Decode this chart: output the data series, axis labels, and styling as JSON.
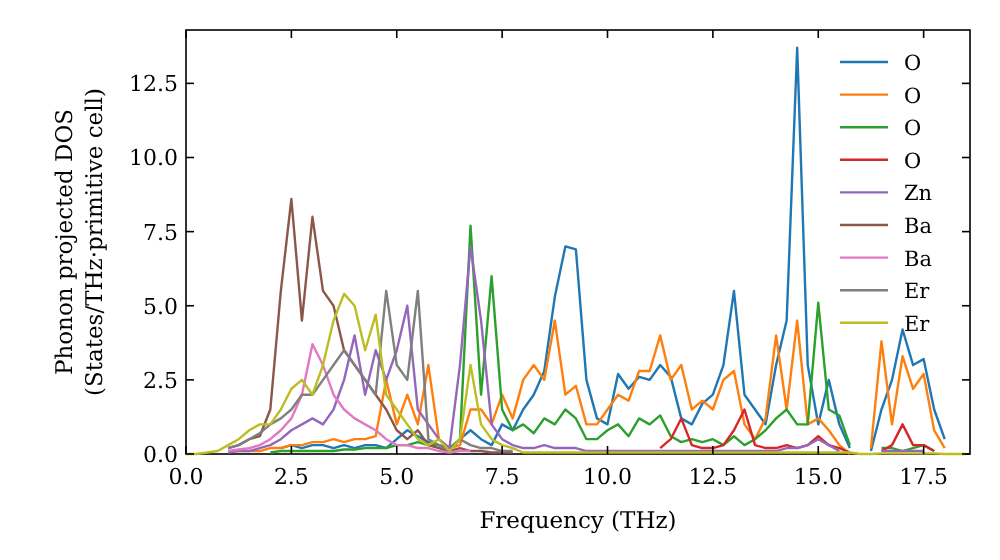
{
  "chart_data": {
    "type": "line",
    "xlabel": "Frequency (THz)",
    "ylabel": "Phonon projected DOS\n(States/THz·primitive cell)",
    "x": [
      0,
      0.25,
      0.5,
      0.75,
      1,
      1.25,
      1.5,
      1.75,
      2,
      2.25,
      2.5,
      2.75,
      3,
      3.25,
      3.5,
      3.75,
      4,
      4.25,
      4.5,
      4.75,
      5,
      5.25,
      5.5,
      5.75,
      6,
      6.25,
      6.5,
      6.75,
      7,
      7.25,
      7.5,
      7.75,
      8,
      8.25,
      8.5,
      8.75,
      9,
      9.25,
      9.5,
      9.75,
      10,
      10.25,
      10.5,
      10.75,
      11,
      11.25,
      11.5,
      11.75,
      12,
      12.25,
      12.5,
      12.75,
      13,
      13.25,
      13.5,
      13.75,
      14,
      14.25,
      14.5,
      14.75,
      15,
      15.25,
      15.5,
      15.75,
      16,
      16.25,
      16.5,
      16.75,
      17,
      17.25,
      17.5,
      17.75,
      18,
      18.25,
      18.5
    ],
    "series": [
      {
        "name": "O",
        "color": "#1f77b4",
        "values": [
          null,
          null,
          null,
          null,
          null,
          null,
          null,
          null,
          null,
          0.2,
          0.3,
          0.2,
          0.3,
          0.3,
          0.2,
          0.3,
          0.2,
          0.3,
          0.3,
          0.2,
          0.5,
          0.8,
          0.6,
          0.4,
          0.3,
          0.1,
          0.5,
          0.8,
          0.5,
          0.3,
          1.0,
          0.8,
          1.5,
          2.0,
          2.8,
          5.3,
          7.0,
          6.9,
          2.5,
          1.2,
          1.0,
          2.7,
          2.2,
          2.6,
          2.5,
          3.0,
          2.6,
          1.2,
          1.0,
          1.7,
          2.0,
          3.0,
          5.5,
          2.0,
          1.5,
          1.0,
          3.0,
          4.5,
          13.7,
          3.0,
          1.0,
          2.5,
          1.0,
          0.2,
          null,
          0.1,
          1.5,
          2.5,
          4.2,
          3.0,
          3.2,
          1.5,
          0.5,
          null,
          null
        ]
      },
      {
        "name": "O",
        "color": "#ff7f0e",
        "values": [
          null,
          null,
          null,
          null,
          null,
          0.1,
          0.1,
          0.1,
          0.2,
          0.2,
          0.3,
          0.3,
          0.4,
          0.4,
          0.5,
          0.4,
          0.5,
          0.5,
          0.6,
          2.5,
          1.0,
          2.0,
          1.0,
          3.0,
          0.5,
          0.2,
          0.3,
          1.5,
          1.5,
          1.0,
          2.0,
          1.2,
          2.5,
          3.0,
          2.5,
          4.5,
          2.0,
          2.3,
          1.0,
          1.0,
          1.5,
          2.0,
          1.8,
          2.8,
          2.8,
          4.0,
          2.5,
          3.0,
          1.5,
          1.8,
          1.5,
          2.5,
          2.8,
          1.0,
          0.5,
          1.2,
          4.0,
          1.5,
          4.5,
          1.0,
          1.2,
          0.8,
          0.3,
          0,
          null,
          0.2,
          3.8,
          1.0,
          3.3,
          2.2,
          2.7,
          0.8,
          0.2,
          null,
          null
        ]
      },
      {
        "name": "O",
        "color": "#2ca02c",
        "values": [
          null,
          null,
          null,
          null,
          null,
          null,
          null,
          null,
          0.05,
          0.1,
          0.1,
          0.1,
          0.1,
          0.1,
          0.1,
          0.15,
          0.15,
          0.2,
          0.2,
          0.2,
          0.3,
          0.3,
          0.4,
          0.3,
          0.3,
          0.2,
          0.5,
          7.7,
          2.0,
          6.0,
          1.5,
          0.8,
          1.0,
          0.7,
          1.2,
          1.0,
          1.5,
          1.2,
          0.5,
          0.5,
          0.8,
          1.0,
          0.6,
          1.2,
          1.0,
          1.3,
          0.6,
          0.4,
          0.5,
          0.4,
          0.5,
          0.3,
          0.6,
          0.3,
          0.5,
          0.8,
          1.2,
          1.5,
          1.0,
          1.0,
          5.1,
          1.5,
          1.3,
          0.3,
          null,
          null,
          0.2,
          0.2,
          0.1,
          0.2,
          0.3,
          0.1,
          null,
          null,
          null
        ]
      },
      {
        "name": "O",
        "color": "#d62728",
        "values": [
          null,
          null,
          null,
          null,
          null,
          null,
          null,
          null,
          null,
          null,
          null,
          null,
          null,
          null,
          null,
          null,
          null,
          null,
          null,
          null,
          null,
          null,
          null,
          null,
          null,
          null,
          null,
          null,
          null,
          null,
          null,
          null,
          null,
          null,
          null,
          null,
          null,
          null,
          null,
          null,
          null,
          null,
          null,
          null,
          null,
          0.2,
          0.5,
          1.2,
          0.3,
          0.2,
          0.2,
          0.3,
          0.8,
          1.5,
          0.3,
          0.2,
          0.2,
          0.3,
          0.2,
          0.3,
          0.6,
          0.3,
          0.2,
          0.05,
          null,
          null,
          0.1,
          0.3,
          1.0,
          0.3,
          0.3,
          0.1,
          null,
          null,
          null
        ]
      },
      {
        "name": "Zn",
        "color": "#9467bd",
        "values": [
          null,
          null,
          null,
          null,
          0.05,
          0.1,
          0.1,
          0.2,
          0.3,
          0.5,
          0.8,
          1.0,
          1.2,
          1.0,
          1.5,
          2.5,
          4.0,
          2.0,
          3.5,
          2.5,
          3.5,
          5.0,
          1.5,
          1.0,
          0.5,
          0.2,
          3.0,
          7.0,
          4.5,
          1.0,
          0.5,
          0.3,
          0.2,
          0.2,
          0.3,
          0.2,
          0.2,
          0.2,
          0.1,
          0.1,
          0.1,
          0.1,
          0.1,
          0.1,
          0.1,
          0.1,
          0.1,
          0.1,
          0.1,
          0.1,
          0.1,
          0.1,
          0.1,
          0.1,
          0.1,
          0.1,
          0.1,
          0.2,
          0.2,
          0.3,
          0.5,
          0.3,
          0.1,
          null,
          null,
          null,
          0.1,
          0.1,
          0.1,
          0.1,
          0.1,
          null,
          null,
          null,
          null
        ]
      },
      {
        "name": "Ba",
        "color": "#8c564b",
        "values": [
          null,
          null,
          null,
          null,
          0.2,
          0.3,
          0.5,
          0.6,
          1.5,
          5.5,
          8.6,
          4.5,
          8.0,
          5.5,
          5.0,
          3.5,
          3.0,
          2.5,
          2.0,
          1.5,
          0.8,
          0.5,
          0.8,
          0.3,
          0.2,
          0.1,
          0.2,
          0.1,
          0.1,
          0.05,
          0.05,
          0.05,
          null,
          null,
          null,
          null,
          null,
          null,
          null,
          null,
          null,
          null,
          null,
          null,
          null,
          null,
          null,
          null,
          null,
          null,
          null,
          null,
          null,
          null,
          null,
          null,
          null,
          null,
          null,
          null,
          null,
          null,
          null,
          null,
          null,
          null,
          null,
          null,
          null,
          null,
          null,
          null,
          null,
          null,
          null
        ]
      },
      {
        "name": "Ba",
        "color": "#e377c2",
        "values": [
          null,
          null,
          null,
          null,
          0.1,
          0.15,
          0.2,
          0.3,
          0.5,
          0.8,
          1.2,
          2.0,
          3.7,
          3.0,
          2.0,
          1.5,
          1.2,
          1.0,
          0.8,
          0.5,
          0.3,
          0.3,
          0.2,
          0.2,
          0.1,
          0.05,
          0.1,
          0.1,
          null,
          null,
          null,
          null,
          null,
          null,
          null,
          null,
          null,
          null,
          null,
          null,
          null,
          null,
          null,
          null,
          null,
          null,
          null,
          null,
          null,
          null,
          null,
          null,
          null,
          null,
          null,
          null,
          null,
          null,
          null,
          null,
          null,
          null,
          null,
          null,
          null,
          null,
          null,
          null,
          null,
          null,
          null,
          null,
          null,
          null,
          null
        ]
      },
      {
        "name": "Er",
        "color": "#7f7f7f",
        "values": [
          null,
          null,
          null,
          null,
          0.2,
          0.3,
          0.5,
          0.7,
          1.0,
          1.2,
          1.5,
          2.0,
          2.0,
          2.5,
          3.0,
          3.5,
          3.0,
          2.5,
          2.0,
          5.5,
          3.0,
          2.5,
          5.5,
          0.5,
          0.3,
          0.1,
          0.5,
          0.3,
          0.2,
          0.2,
          0.1,
          0.1,
          null,
          null,
          null,
          null,
          null,
          null,
          null,
          null,
          null,
          null,
          null,
          null,
          null,
          null,
          null,
          null,
          null,
          null,
          null,
          null,
          null,
          null,
          null,
          null,
          null,
          null,
          null,
          null,
          null,
          null,
          null,
          null,
          null,
          null,
          null,
          null,
          null,
          null,
          null,
          null,
          null,
          null,
          null
        ]
      },
      {
        "name": "Er",
        "color": "#bcbd22",
        "values": [
          0,
          0,
          0.05,
          0.1,
          0.3,
          0.5,
          0.8,
          1.0,
          1.0,
          1.5,
          2.2,
          2.5,
          2.0,
          3.0,
          4.5,
          5.4,
          5.0,
          3.5,
          4.7,
          2.0,
          1.5,
          1.0,
          0.5,
          0.3,
          0.5,
          0.1,
          0.5,
          3.0,
          1.0,
          0.5,
          0.3,
          0.2,
          0.05,
          0.05,
          0.05,
          0.05,
          0.05,
          0.05,
          0.05,
          0.05,
          0.05,
          0.05,
          0.05,
          0.05,
          0.05,
          0.05,
          0.05,
          0.05,
          0.05,
          0.05,
          0.05,
          0.05,
          0.05,
          0.05,
          0.05,
          0.05,
          0.05,
          0.05,
          0.05,
          0.05,
          0.05,
          0.05,
          0.05,
          0.05,
          0,
          0,
          0.02,
          0.02,
          0.02,
          0.02,
          0.02,
          0.02,
          0,
          0,
          0
        ]
      }
    ],
    "xlim": [
      0,
      18.6
    ],
    "ylim": [
      0,
      14.3
    ],
    "xticks": [
      {
        "value": 0,
        "label": "0.0"
      },
      2.5,
      {
        "value": 5,
        "label": "5.0"
      },
      7.5,
      {
        "value": 10,
        "label": "10.0"
      },
      12.5,
      {
        "value": 15,
        "label": "15.0"
      },
      17.5
    ],
    "yticks": [
      {
        "value": 0,
        "label": "0.0"
      },
      2.5,
      {
        "value": 5,
        "label": "5.0"
      },
      7.5,
      {
        "value": 10,
        "label": "10.0"
      },
      12.5
    ],
    "legend": "top right",
    "grid": false,
    "marker": "none",
    "line_style": "solid"
  }
}
